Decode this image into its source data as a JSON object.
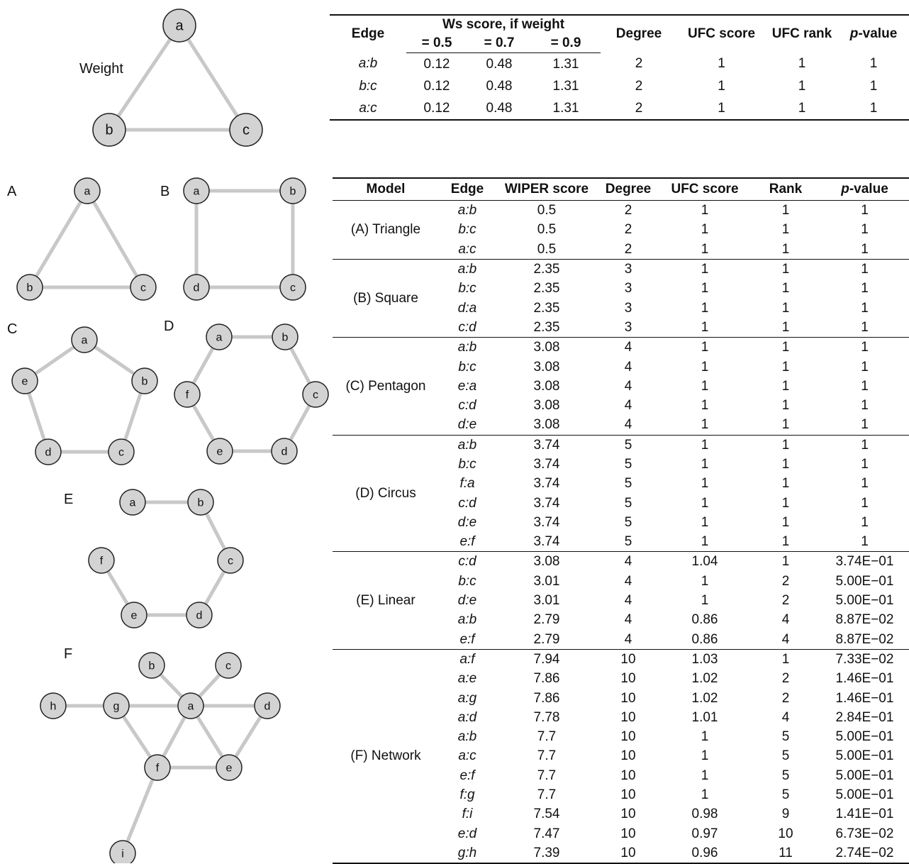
{
  "weight_panel": {
    "label": "Weight",
    "table": {
      "headers": {
        "edge": "Edge",
        "ws_group": "Ws score, if weight",
        "ws_sub": [
          "= 0.5",
          "= 0.7",
          "= 0.9"
        ],
        "degree": "Degree",
        "ufc_score": "UFC score",
        "ufc_rank": "UFC rank",
        "p_prefix": "p",
        "p_suffix": "-value"
      },
      "rows": [
        {
          "edge": "a:b",
          "w05": "0.12",
          "w07": "0.48",
          "w09": "1.31",
          "degree": "2",
          "ufc": "1",
          "rank": "1",
          "p": "1"
        },
        {
          "edge": "b:c",
          "w05": "0.12",
          "w07": "0.48",
          "w09": "1.31",
          "degree": "2",
          "ufc": "1",
          "rank": "1",
          "p": "1"
        },
        {
          "edge": "a:c",
          "w05": "0.12",
          "w07": "0.48",
          "w09": "1.31",
          "degree": "2",
          "ufc": "1",
          "rank": "1",
          "p": "1"
        }
      ]
    }
  },
  "panel_letters": [
    "A",
    "B",
    "C",
    "D",
    "E",
    "F"
  ],
  "graphs": {
    "weight": [
      "a",
      "b",
      "c"
    ],
    "A": [
      "a",
      "b",
      "c"
    ],
    "B": [
      "a",
      "b",
      "c",
      "d"
    ],
    "C": [
      "a",
      "b",
      "c",
      "d",
      "e"
    ],
    "D": [
      "a",
      "b",
      "c",
      "d",
      "e",
      "f"
    ],
    "E": [
      "a",
      "b",
      "c",
      "d",
      "e",
      "f"
    ],
    "F": [
      "a",
      "b",
      "c",
      "d",
      "e",
      "f",
      "g",
      "h",
      "i"
    ]
  },
  "model_table": {
    "headers": {
      "model": "Model",
      "edge": "Edge",
      "wiper": "WIPER score",
      "degree": "Degree",
      "ufc": "UFC score",
      "rank": "Rank",
      "p_prefix": "p",
      "p_suffix": "-value"
    },
    "groups": [
      {
        "model": "(A) Triangle",
        "rows": [
          {
            "edge": "a:b",
            "wiper": "0.5",
            "degree": "2",
            "ufc": "1",
            "rank": "1",
            "p": "1"
          },
          {
            "edge": "b:c",
            "wiper": "0.5",
            "degree": "2",
            "ufc": "1",
            "rank": "1",
            "p": "1"
          },
          {
            "edge": "a:c",
            "wiper": "0.5",
            "degree": "2",
            "ufc": "1",
            "rank": "1",
            "p": "1"
          }
        ]
      },
      {
        "model": "(B) Square",
        "rows": [
          {
            "edge": "a:b",
            "wiper": "2.35",
            "degree": "3",
            "ufc": "1",
            "rank": "1",
            "p": "1"
          },
          {
            "edge": "b:c",
            "wiper": "2.35",
            "degree": "3",
            "ufc": "1",
            "rank": "1",
            "p": "1"
          },
          {
            "edge": "d:a",
            "wiper": "2.35",
            "degree": "3",
            "ufc": "1",
            "rank": "1",
            "p": "1"
          },
          {
            "edge": "c:d",
            "wiper": "2.35",
            "degree": "3",
            "ufc": "1",
            "rank": "1",
            "p": "1"
          }
        ]
      },
      {
        "model": "(C) Pentagon",
        "rows": [
          {
            "edge": "a:b",
            "wiper": "3.08",
            "degree": "4",
            "ufc": "1",
            "rank": "1",
            "p": "1"
          },
          {
            "edge": "b:c",
            "wiper": "3.08",
            "degree": "4",
            "ufc": "1",
            "rank": "1",
            "p": "1"
          },
          {
            "edge": "e:a",
            "wiper": "3.08",
            "degree": "4",
            "ufc": "1",
            "rank": "1",
            "p": "1"
          },
          {
            "edge": "c:d",
            "wiper": "3.08",
            "degree": "4",
            "ufc": "1",
            "rank": "1",
            "p": "1"
          },
          {
            "edge": "d:e",
            "wiper": "3.08",
            "degree": "4",
            "ufc": "1",
            "rank": "1",
            "p": "1"
          }
        ]
      },
      {
        "model": "(D) Circus",
        "rows": [
          {
            "edge": "a:b",
            "wiper": "3.74",
            "degree": "5",
            "ufc": "1",
            "rank": "1",
            "p": "1"
          },
          {
            "edge": "b:c",
            "wiper": "3.74",
            "degree": "5",
            "ufc": "1",
            "rank": "1",
            "p": "1"
          },
          {
            "edge": "f:a",
            "wiper": "3.74",
            "degree": "5",
            "ufc": "1",
            "rank": "1",
            "p": "1"
          },
          {
            "edge": "c:d",
            "wiper": "3.74",
            "degree": "5",
            "ufc": "1",
            "rank": "1",
            "p": "1"
          },
          {
            "edge": "d:e",
            "wiper": "3.74",
            "degree": "5",
            "ufc": "1",
            "rank": "1",
            "p": "1"
          },
          {
            "edge": "e:f",
            "wiper": "3.74",
            "degree": "5",
            "ufc": "1",
            "rank": "1",
            "p": "1"
          }
        ]
      },
      {
        "model": "(E) Linear",
        "rows": [
          {
            "edge": "c:d",
            "wiper": "3.08",
            "degree": "4",
            "ufc": "1.04",
            "rank": "1",
            "p": "3.74E−01"
          },
          {
            "edge": "b:c",
            "wiper": "3.01",
            "degree": "4",
            "ufc": "1",
            "rank": "2",
            "p": "5.00E−01"
          },
          {
            "edge": "d:e",
            "wiper": "3.01",
            "degree": "4",
            "ufc": "1",
            "rank": "2",
            "p": "5.00E−01"
          },
          {
            "edge": "a:b",
            "wiper": "2.79",
            "degree": "4",
            "ufc": "0.86",
            "rank": "4",
            "p": "8.87E−02"
          },
          {
            "edge": "e:f",
            "wiper": "2.79",
            "degree": "4",
            "ufc": "0.86",
            "rank": "4",
            "p": "8.87E−02"
          }
        ]
      },
      {
        "model": "(F) Network",
        "rows": [
          {
            "edge": "a:f",
            "wiper": "7.94",
            "degree": "10",
            "ufc": "1.03",
            "rank": "1",
            "p": "7.33E−02"
          },
          {
            "edge": "a:e",
            "wiper": "7.86",
            "degree": "10",
            "ufc": "1.02",
            "rank": "2",
            "p": "1.46E−01"
          },
          {
            "edge": "a:g",
            "wiper": "7.86",
            "degree": "10",
            "ufc": "1.02",
            "rank": "2",
            "p": "1.46E−01"
          },
          {
            "edge": "a:d",
            "wiper": "7.78",
            "degree": "10",
            "ufc": "1.01",
            "rank": "4",
            "p": "2.84E−01"
          },
          {
            "edge": "a:b",
            "wiper": "7.7",
            "degree": "10",
            "ufc": "1",
            "rank": "5",
            "p": "5.00E−01"
          },
          {
            "edge": "a:c",
            "wiper": "7.7",
            "degree": "10",
            "ufc": "1",
            "rank": "5",
            "p": "5.00E−01"
          },
          {
            "edge": "e:f",
            "wiper": "7.7",
            "degree": "10",
            "ufc": "1",
            "rank": "5",
            "p": "5.00E−01"
          },
          {
            "edge": "f:g",
            "wiper": "7.7",
            "degree": "10",
            "ufc": "1",
            "rank": "5",
            "p": "5.00E−01"
          },
          {
            "edge": "f:i",
            "wiper": "7.54",
            "degree": "10",
            "ufc": "0.98",
            "rank": "9",
            "p": "1.41E−01"
          },
          {
            "edge": "e:d",
            "wiper": "7.47",
            "degree": "10",
            "ufc": "0.97",
            "rank": "10",
            "p": "6.73E−02"
          },
          {
            "edge": "g:h",
            "wiper": "7.39",
            "degree": "10",
            "ufc": "0.96",
            "rank": "11",
            "p": "2.74E−02"
          }
        ]
      }
    ]
  }
}
